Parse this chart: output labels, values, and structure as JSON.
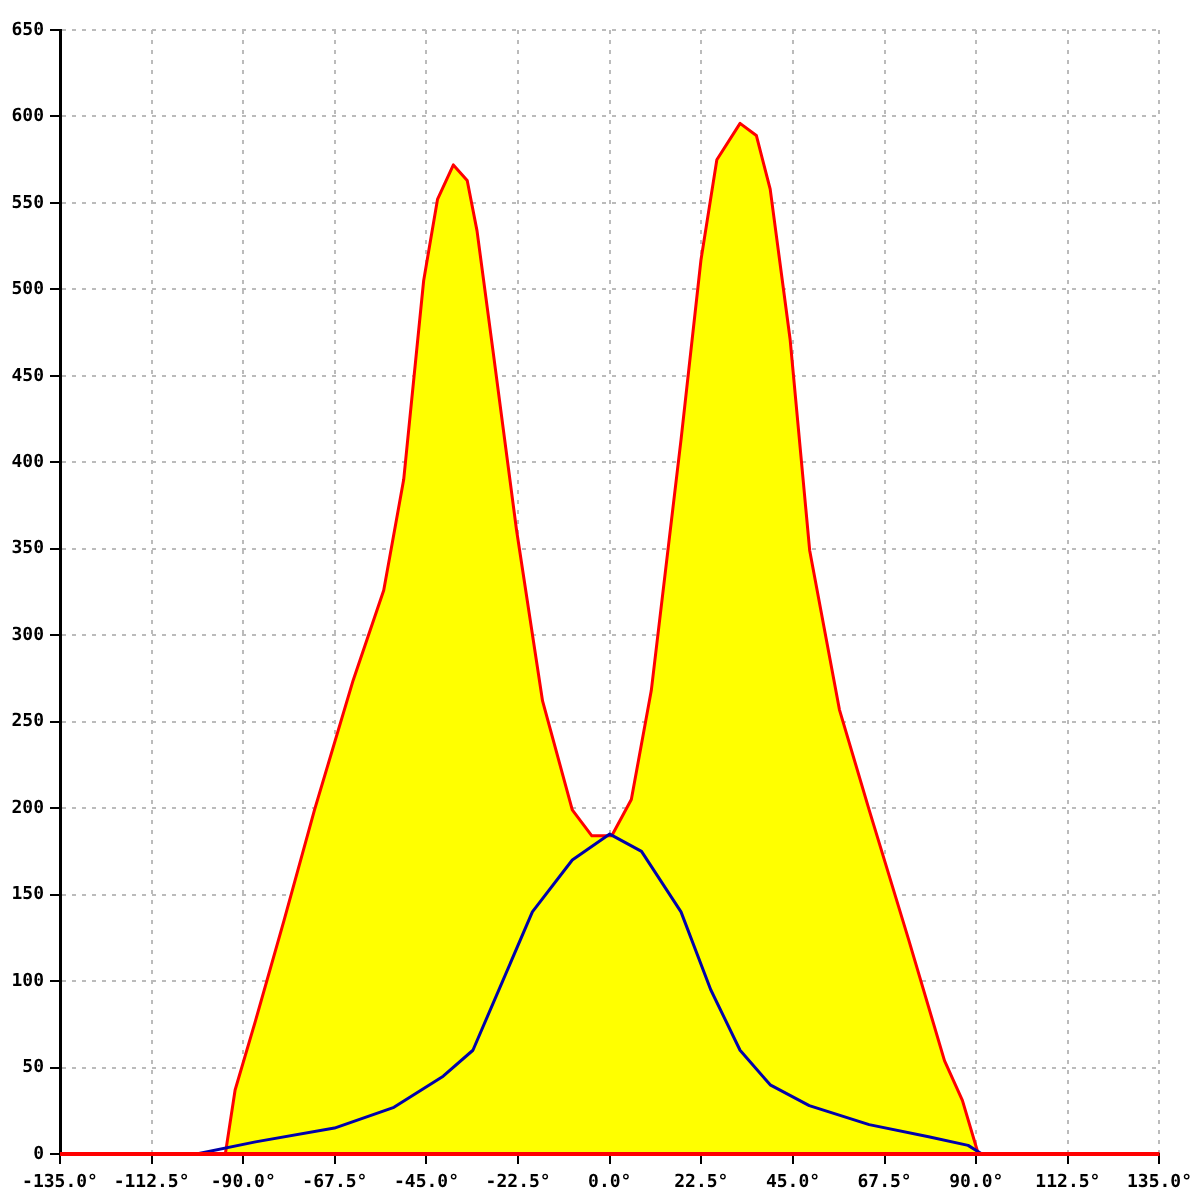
{
  "chart_data": {
    "type": "area",
    "xlim": [
      -135,
      135
    ],
    "xticks": [
      {
        "value": -135,
        "label": "-135.0°"
      },
      {
        "value": -112.5,
        "label": "-112.5°"
      },
      {
        "value": -90,
        "label": "-90.0°"
      },
      {
        "value": -67.5,
        "label": "-67.5°"
      },
      {
        "value": -45,
        "label": "-45.0°"
      },
      {
        "value": -22.5,
        "label": "-22.5°"
      },
      {
        "value": 0,
        "label": "0.0°"
      },
      {
        "value": 22.5,
        "label": "22.5°"
      },
      {
        "value": 45,
        "label": "45.0°"
      },
      {
        "value": 67.5,
        "label": "67.5°"
      },
      {
        "value": 90,
        "label": "90.0°"
      },
      {
        "value": 112.5,
        "label": "112.5°"
      },
      {
        "value": 135,
        "label": "135.0°"
      }
    ],
    "ylim": [
      0,
      650
    ],
    "yticks": [
      0,
      50,
      100,
      150,
      200,
      250,
      300,
      350,
      400,
      450,
      500,
      550,
      600,
      650
    ],
    "grid": true,
    "ref_lines": [
      {
        "axis": "y",
        "value": 0,
        "color": "#ff0000"
      }
    ],
    "series": [
      {
        "type": "area",
        "color": "#ffff00",
        "x": [
          -101.5,
          -94.4,
          -92,
          -87,
          -80,
          -72.5,
          -63,
          -55.5,
          -50.6,
          -45.7,
          -42.3,
          -38.4,
          -35,
          -32.6,
          -28.7,
          -22.9,
          -16.5,
          -9.2,
          -4.4,
          0.5,
          5.3,
          10.2,
          17.5,
          22.4,
          26.3,
          32,
          36,
          39.4,
          44.3,
          49.1,
          56.4,
          63.7,
          73.4,
          82.2,
          86.6,
          90.5,
          97.8
        ],
        "values": [
          0,
          0,
          37,
          77,
          135,
          199,
          274,
          326,
          390,
          505,
          552,
          572,
          563,
          534,
          465,
          361,
          262,
          199,
          184,
          184,
          205,
          268,
          413,
          517,
          575,
          596,
          589,
          558,
          471,
          349,
          257,
          199,
          124,
          54,
          31,
          0,
          0
        ]
      },
      {
        "type": "line",
        "color": "#0000aa",
        "x": [
          -101.5,
          -87,
          -67.6,
          -53,
          -40.9,
          -33.6,
          -26.3,
          -19,
          -9.2,
          0,
          7.8,
          17.5,
          24.8,
          32,
          39.4,
          49,
          63.7,
          78.3,
          88,
          91.4,
          97.8
        ],
        "values": [
          0,
          7,
          15,
          27,
          45,
          60,
          100,
          140,
          170,
          185,
          175,
          140,
          95,
          60,
          40,
          28,
          17,
          10,
          5,
          0,
          0
        ]
      }
    ]
  }
}
